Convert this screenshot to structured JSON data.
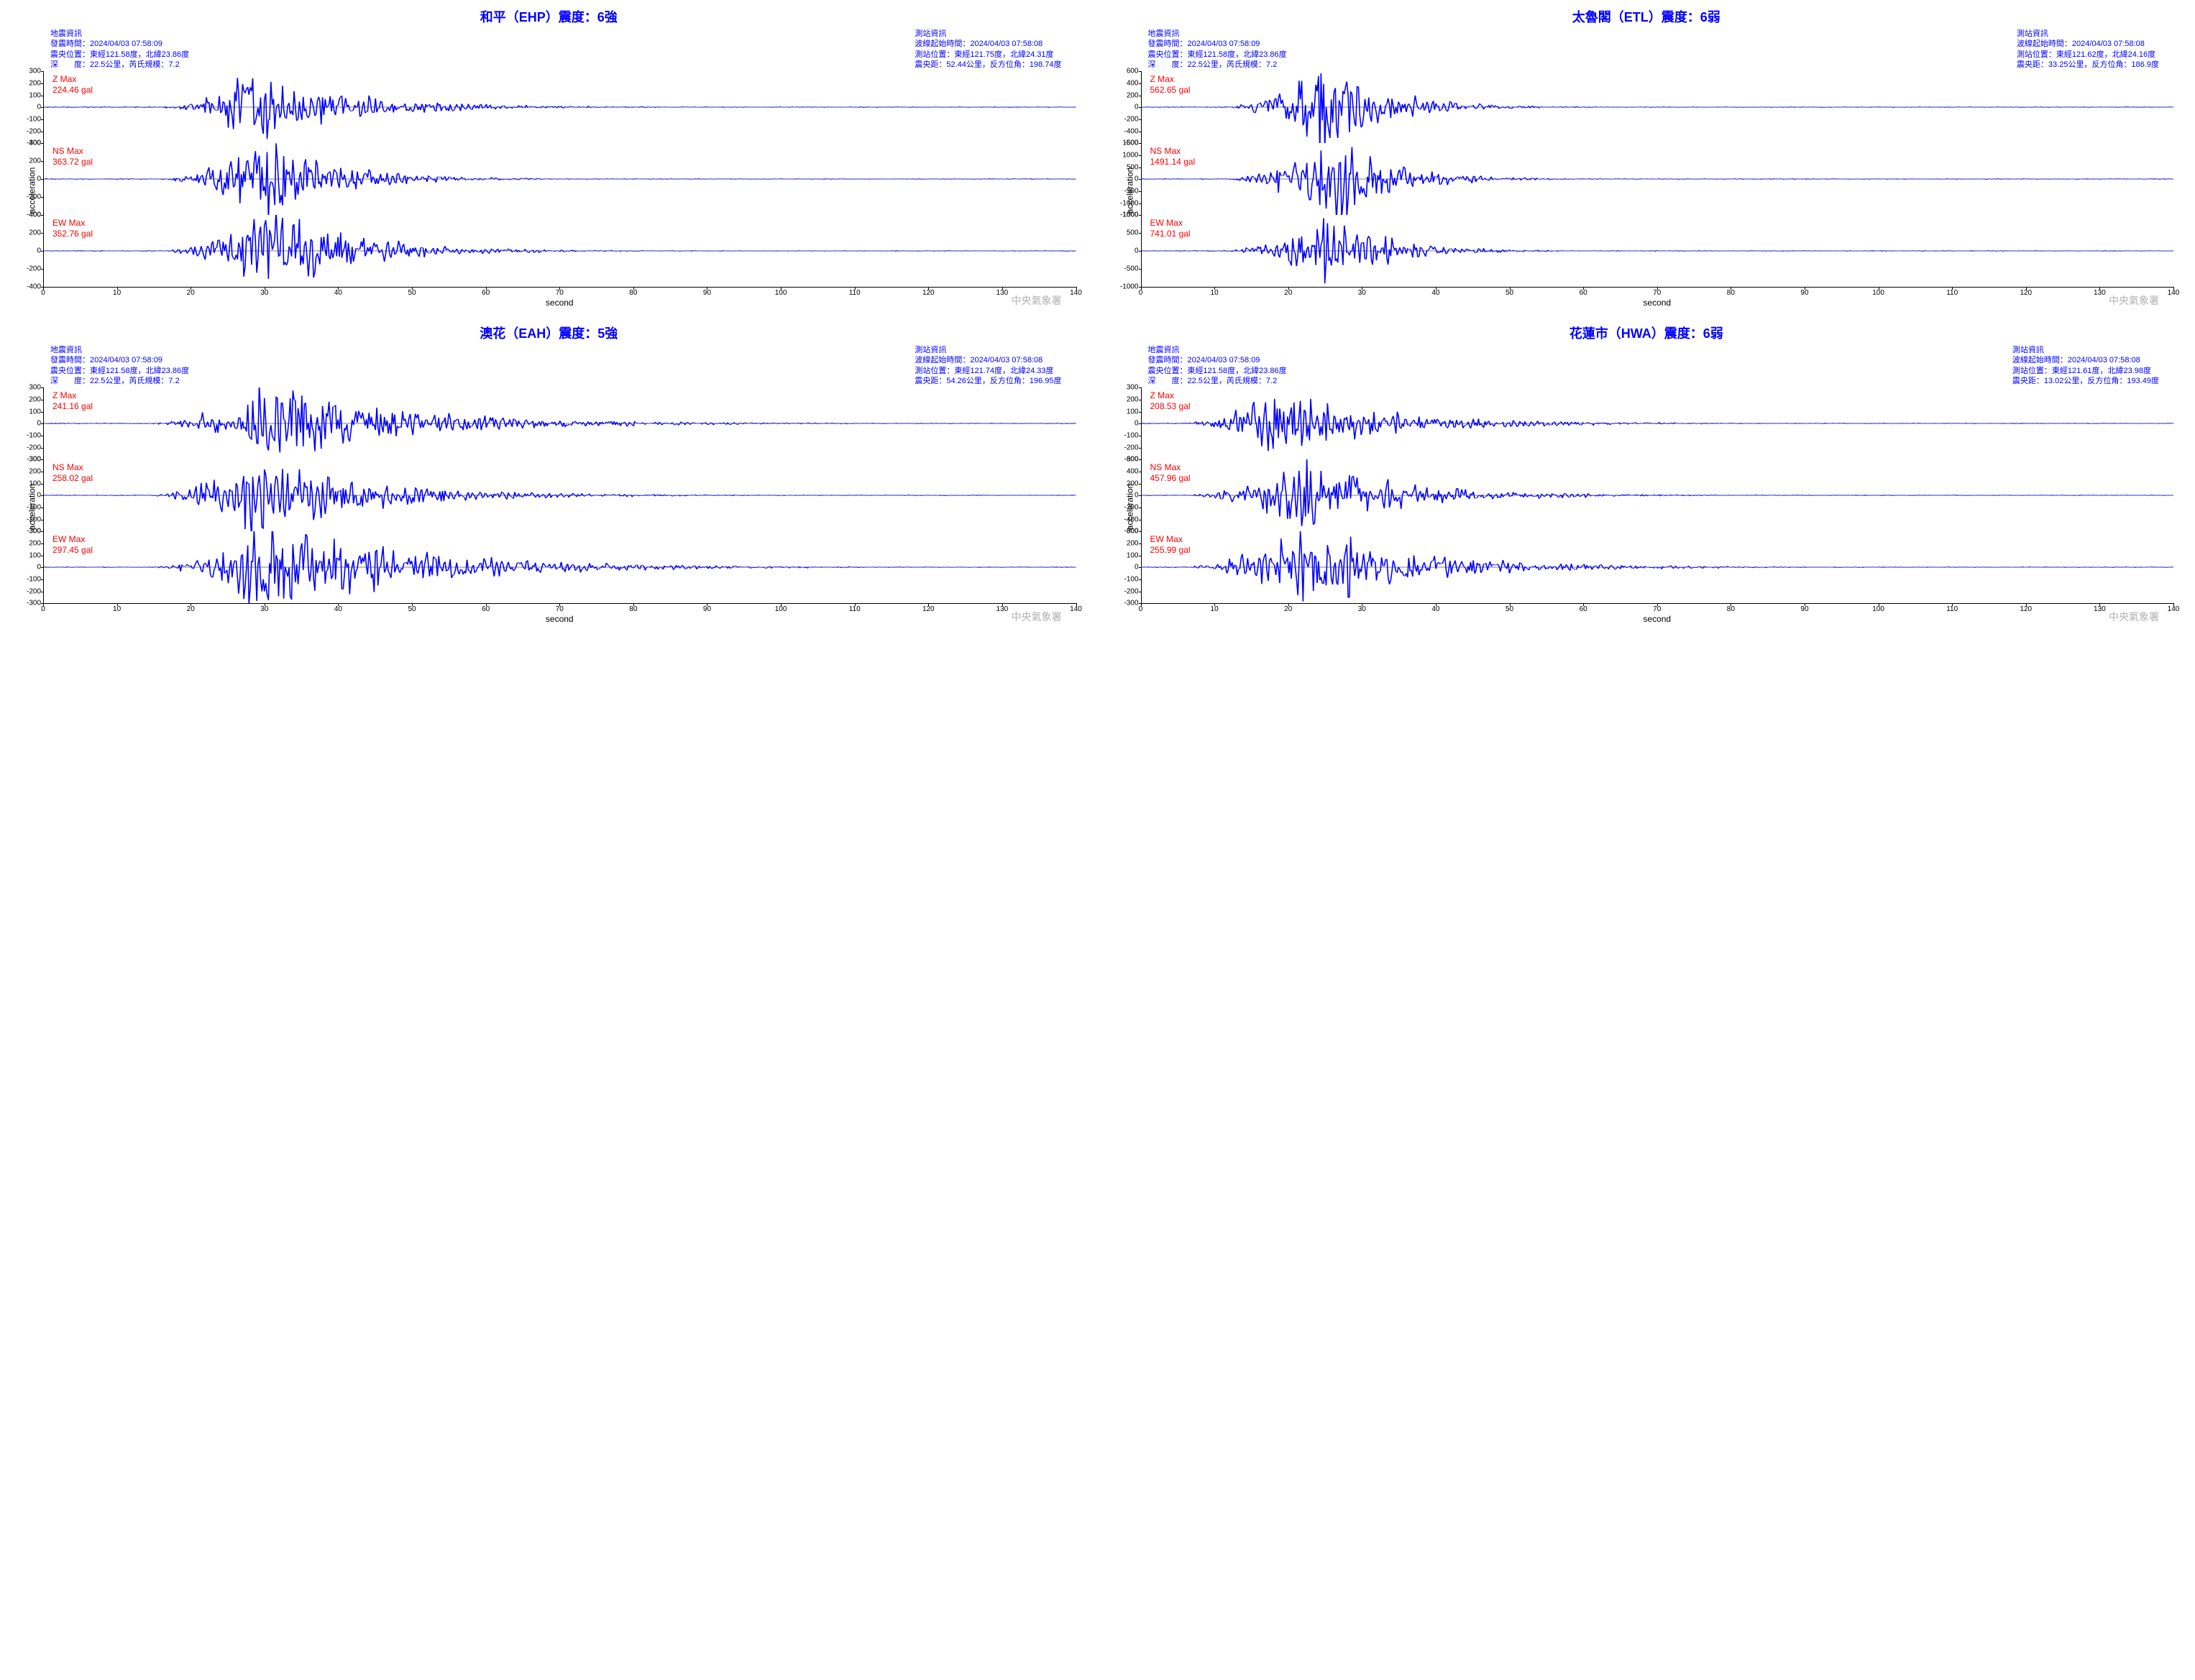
{
  "common": {
    "earthquake_info_header": "地震資訊",
    "station_info_header": "測站資訊",
    "origin_time_label": "發震時間：",
    "origin_time": "2024/04/03 07:58:09",
    "epicenter_label": "震央位置：",
    "epicenter": "東經121.58度，北緯23.86度",
    "depth_label": "深　　度：",
    "depth": "22.5公里，芮氏規模：7.2",
    "wave_start_label": "波線起始時間：",
    "wave_start": "2024/04/03 07:58:08",
    "station_loc_label": "測站位置：",
    "dist_label": "震央距：",
    "xlabel": "second",
    "ylabel": "acceleration",
    "watermark": "中央氣象署",
    "xlim": [
      0,
      140
    ],
    "xtick_step": 10,
    "wave_color": "#0000ff",
    "text_color": "#0000ff",
    "max_label_color": "#ff0000",
    "background_color": "#ffffff"
  },
  "stations": [
    {
      "title": "和平（EHP）震度：6強",
      "station_loc": "東經121.75度，北緯24.31度",
      "dist": "52.44公里，反方位角：198.74度",
      "components": [
        {
          "name": "Z Max",
          "value": "224.46 gal",
          "ylim": [
            -300,
            300
          ],
          "ystep": 100,
          "amp": 0.75,
          "onset": 15,
          "peak": 28,
          "decay": 55
        },
        {
          "name": "NS Max",
          "value": "363.72 gal",
          "ylim": [
            -400,
            400
          ],
          "ystep": 200,
          "amp": 0.9,
          "onset": 15,
          "peak": 30,
          "decay": 50
        },
        {
          "name": "EW Max",
          "value": "352.76 gal",
          "ylim": [
            -400,
            400
          ],
          "ystep": 200,
          "amp": 0.88,
          "onset": 15,
          "peak": 30,
          "decay": 55
        }
      ]
    },
    {
      "title": "太魯閣（ETL）震度：6弱",
      "station_loc": "東經121.62度，北緯24.16度",
      "dist": "33.25公里，反方位角：186.9度",
      "components": [
        {
          "name": "Z Max",
          "value": "562.65 gal",
          "ylim": [
            -600,
            600
          ],
          "ystep": 200,
          "amp": 0.94,
          "onset": 10,
          "peak": 25,
          "decay": 42
        },
        {
          "name": "NS Max",
          "value": "1491.14 gal",
          "ylim": [
            -1500,
            1500
          ],
          "ystep": 500,
          "amp": 0.99,
          "onset": 10,
          "peak": 26,
          "decay": 42
        },
        {
          "name": "EW Max",
          "value": "741.01 gal",
          "ylim": [
            -1000,
            1000
          ],
          "ystep": 500,
          "amp": 0.74,
          "onset": 10,
          "peak": 26,
          "decay": 42
        }
      ]
    },
    {
      "title": "澳花（EAH）震度：5強",
      "station_loc": "東經121.74度，北緯24.33度",
      "dist": "54.26公里，反方位角：196.95度",
      "components": [
        {
          "name": "Z Max",
          "value": "241.16 gal",
          "ylim": [
            -300,
            300
          ],
          "ystep": 100,
          "amp": 0.8,
          "onset": 14,
          "peak": 30,
          "decay": 70
        },
        {
          "name": "NS Max",
          "value": "258.02 gal",
          "ylim": [
            -300,
            300
          ],
          "ystep": 100,
          "amp": 0.86,
          "onset": 14,
          "peak": 28,
          "decay": 60
        },
        {
          "name": "EW Max",
          "value": "297.45 gal",
          "ylim": [
            -300,
            300
          ],
          "ystep": 100,
          "amp": 0.99,
          "onset": 14,
          "peak": 30,
          "decay": 70
        }
      ]
    },
    {
      "title": "花蓮市（HWA）震度：6弱",
      "station_loc": "東經121.61度，北緯23.98度",
      "dist": "13.02公里，反方位角：193.49度",
      "components": [
        {
          "name": "Z Max",
          "value": "208.53 gal",
          "ylim": [
            -300,
            300
          ],
          "ystep": 100,
          "amp": 0.7,
          "onset": 5,
          "peak": 18,
          "decay": 50
        },
        {
          "name": "NS Max",
          "value": "457.96 gal",
          "ylim": [
            -600,
            600
          ],
          "ystep": 200,
          "amp": 0.76,
          "onset": 5,
          "peak": 22,
          "decay": 50
        },
        {
          "name": "EW Max",
          "value": "255.99 gal",
          "ylim": [
            -300,
            300
          ],
          "ystep": 100,
          "amp": 0.85,
          "onset": 5,
          "peak": 22,
          "decay": 55
        }
      ]
    }
  ]
}
